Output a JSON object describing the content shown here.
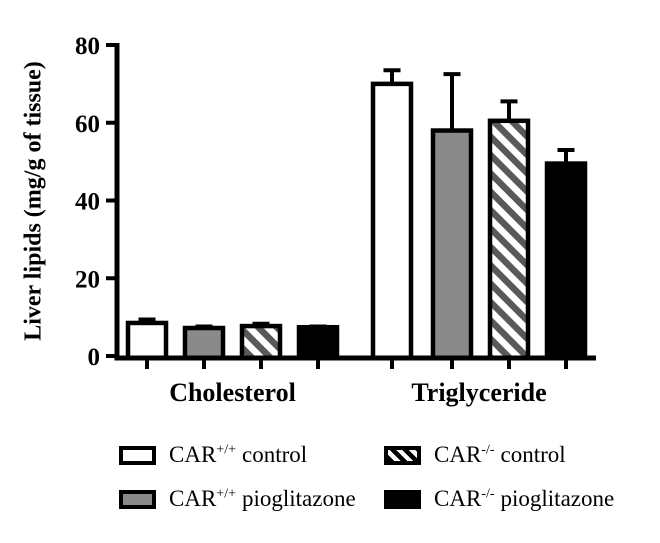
{
  "figure_title": "",
  "colors": {
    "bar_white": "#ffffff",
    "bar_gray": "#8a8a8a",
    "bar_black": "#000000",
    "hatch_stripe": "#595959",
    "axis": "#000000",
    "background": "#ffffff"
  },
  "chart_data": {
    "type": "bar",
    "title": "",
    "xlabel": "",
    "ylabel": "Liver lipids (mg/g of tissue)",
    "ylim": [
      0,
      80
    ],
    "yticks": [
      "0",
      "20",
      "40",
      "60",
      "80"
    ],
    "ytick_values": [
      0,
      20,
      40,
      60,
      80
    ],
    "grid": false,
    "legend_position": "bottom",
    "categories": [
      "Cholesterol",
      "Triglyceride"
    ],
    "series": [
      {
        "name": "CAR+/+ control",
        "pattern": "white",
        "values": [
          8.5,
          70
        ],
        "errors": [
          0.9,
          3.5
        ]
      },
      {
        "name": "CAR+/+ pioglitazone",
        "pattern": "gray",
        "values": [
          7.2,
          58
        ],
        "errors": [
          0.4,
          14.5
        ]
      },
      {
        "name": "CAR-/- control",
        "pattern": "hatched",
        "values": [
          7.7,
          60.5
        ],
        "errors": [
          0.6,
          5
        ]
      },
      {
        "name": "CAR-/- pioglitazone",
        "pattern": "black",
        "values": [
          7.4,
          49.5
        ],
        "errors": [
          0.2,
          3.5
        ]
      }
    ],
    "error_bars": "SEM, upper only"
  },
  "legend": {
    "items": [
      {
        "base": "CAR",
        "sup": "+/+",
        "variant": "control",
        "swatch": "white"
      },
      {
        "base": "CAR",
        "sup": "+/+",
        "variant": "pioglitazone",
        "swatch": "gray"
      },
      {
        "base": "CAR",
        "sup": "-/-",
        "variant": "control",
        "swatch": "hatched"
      },
      {
        "base": "CAR",
        "sup": "-/-",
        "variant": "pioglitazone",
        "swatch": "black"
      }
    ]
  }
}
